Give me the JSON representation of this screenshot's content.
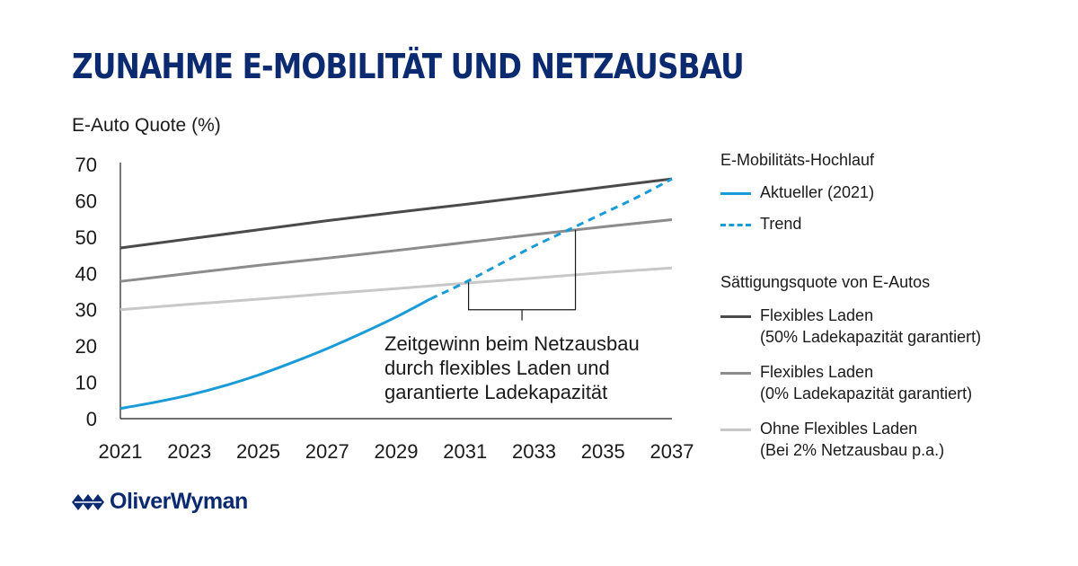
{
  "title": "ZUNAHME E-MOBILITÄT UND NETZAUSBAU",
  "annotation": [
    "Zeitgewinn beim Netzausbau",
    "durch flexibles Laden und",
    "garantierte Ladekapazität"
  ],
  "legend": {
    "group1_title": "E-Mobilitäts-Hochlauf",
    "group1_items": [
      {
        "label": "Aktueller (2021)"
      },
      {
        "label": "Trend"
      }
    ],
    "group2_title": "Sättigungsquote von E-Autos",
    "group2_items": [
      {
        "line1": "Flexibles Laden",
        "line2": "(50% Ladekapazität garantiert)"
      },
      {
        "line1": "Flexibles Laden",
        "line2": "(0% Ladekapazität garantiert)"
      },
      {
        "line1": "Ohne Flexibles Laden",
        "line2": "(Bei 2% Netzausbau p.a.)"
      }
    ]
  },
  "logo": {
    "text": "OliverWyman",
    "color": "#0b2a6f"
  },
  "colors": {
    "title": "#0b2a6f",
    "aktueller": "#1a9bd7",
    "flex50": "#4a4a4a",
    "flex0": "#8c8c8c",
    "ohne": "#c8c8c8"
  },
  "chart_data": {
    "type": "line",
    "title": "ZUNAHME E-MOBILITÄT UND NETZAUSBAU",
    "xlabel": "",
    "ylabel": "E-Auto Quote (%)",
    "xlim": [
      2021,
      2037
    ],
    "ylim": [
      0,
      70
    ],
    "x_ticks": [
      "2021",
      "2023",
      "2025",
      "2027",
      "2029",
      "2031",
      "2033",
      "2035",
      "2037"
    ],
    "y_ticks": [
      "0",
      "10",
      "20",
      "30",
      "40",
      "50",
      "60",
      "70"
    ],
    "grid": false,
    "legend_position": "right",
    "series": [
      {
        "name": "Aktueller (2021)",
        "style": "solid",
        "color": "#1a9bd7",
        "x": [
          2021,
          2022,
          2023,
          2024,
          2025,
          2026,
          2027,
          2028,
          2029,
          2030
        ],
        "y": [
          2.8,
          4.5,
          6.5,
          9.0,
          12.0,
          15.5,
          19.3,
          23.5,
          28.0,
          33.0
        ]
      },
      {
        "name": "Trend",
        "style": "dashed",
        "color": "#1a9bd7",
        "x": [
          2030,
          2031,
          2032,
          2033,
          2034,
          2035,
          2036,
          2037
        ],
        "y": [
          33.0,
          37.5,
          42.5,
          47.5,
          52.0,
          56.5,
          61.0,
          66.0
        ]
      },
      {
        "name": "Flexibles Laden (50% Ladekapazität garantiert)",
        "style": "solid",
        "color": "#4a4a4a",
        "x": [
          2021,
          2023,
          2025,
          2027,
          2029,
          2031,
          2033,
          2035,
          2037
        ],
        "y": [
          47.0,
          49.5,
          52.0,
          54.5,
          56.8,
          59.0,
          61.3,
          63.7,
          66.0
        ]
      },
      {
        "name": "Flexibles Laden (0% Ladekapazität garantiert)",
        "style": "solid",
        "color": "#8c8c8c",
        "x": [
          2021,
          2023,
          2025,
          2027,
          2029,
          2031,
          2033,
          2035,
          2037
        ],
        "y": [
          37.8,
          40.0,
          42.2,
          44.2,
          46.3,
          48.5,
          50.7,
          52.8,
          54.8
        ]
      },
      {
        "name": "Ohne Flexibles Laden (Bei 2% Netzausbau p.a.)",
        "style": "solid",
        "color": "#c8c8c8",
        "x": [
          2021,
          2023,
          2025,
          2027,
          2029,
          2031,
          2033,
          2035,
          2037
        ],
        "y": [
          30.0,
          31.5,
          32.9,
          34.4,
          35.8,
          37.3,
          38.7,
          40.2,
          41.5
        ]
      }
    ],
    "bracket": {
      "from_x": 2031.1,
      "to_x": 2034.2,
      "y": 30
    }
  }
}
